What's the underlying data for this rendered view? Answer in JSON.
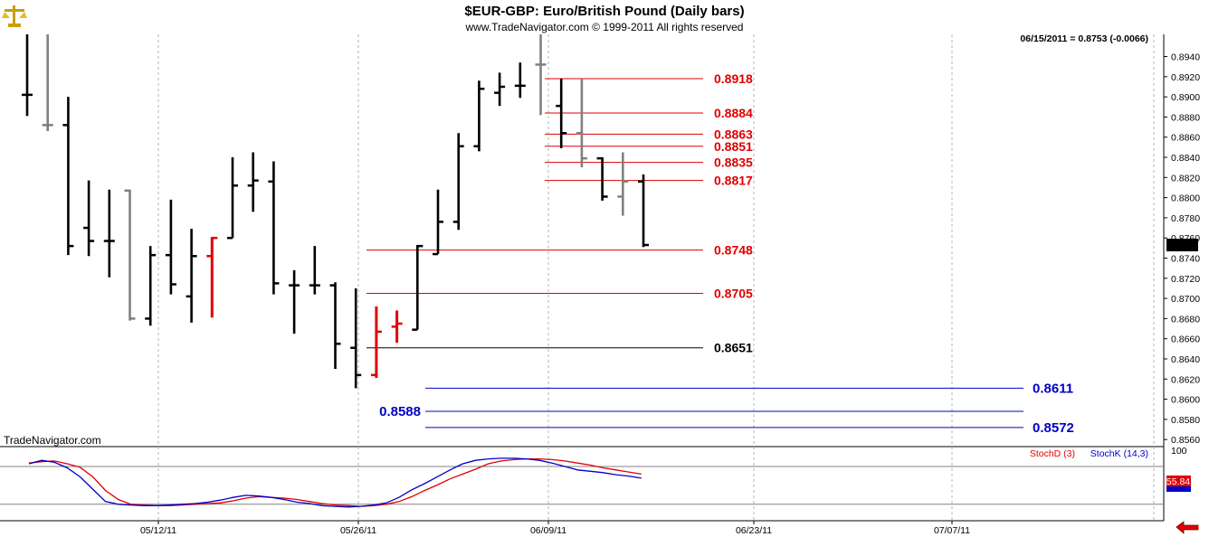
{
  "header": {
    "title": "$EUR-GBP:  Euro/British Pound  (Daily bars)",
    "copyright": "www.TradeNavigator.com © 1999-2011 All rights reserved",
    "last_info": "06/15/2011 = 0.8753 (-0.0066)",
    "brand": "TradeNavigator.com",
    "logo_icon": "scales-logo-icon"
  },
  "colors": {
    "bar_up": "#000000",
    "bar_gray": "#808080",
    "bar_red": "#e00000",
    "level_red": "#e00000",
    "level_black": "#000000",
    "level_blue": "#0000c8",
    "stoch_d": "#e00000",
    "stoch_k": "#0000c8",
    "grid": "#b4b4b4"
  },
  "chart_data": {
    "type": "ohlc",
    "price_ticks": [
      "0.8940",
      "0.8920",
      "0.8900",
      "0.8880",
      "0.8860",
      "0.8840",
      "0.8820",
      "0.8800",
      "0.8780",
      "0.8760",
      "0.8740",
      "0.8720",
      "0.8700",
      "0.8680",
      "0.8660",
      "0.8640",
      "0.8620",
      "0.8600",
      "0.8580",
      "0.8560"
    ],
    "ylim": [
      0.8553,
      0.8962
    ],
    "last_price_label": "0.8753",
    "x_ticks": [
      "05/12/11",
      "05/26/11",
      "06/09/11",
      "06/23/11",
      "07/07/11"
    ],
    "bars": [
      {
        "h": 0.8962,
        "l": 0.8881,
        "o": 0.8902,
        "c": 0.8902,
        "color": "black"
      },
      {
        "h": 0.8962,
        "l": 0.8866,
        "o": 0.8872,
        "c": 0.8872,
        "color": "gray"
      },
      {
        "h": 0.89,
        "l": 0.8743,
        "o": 0.8872,
        "c": 0.8752,
        "color": "black"
      },
      {
        "h": 0.8817,
        "l": 0.8742,
        "o": 0.877,
        "c": 0.8757,
        "color": "black"
      },
      {
        "h": 0.8808,
        "l": 0.8721,
        "o": 0.8757,
        "c": 0.8757,
        "color": "black"
      },
      {
        "h": 0.8808,
        "l": 0.8678,
        "o": 0.8807,
        "c": 0.868,
        "color": "gray"
      },
      {
        "h": 0.8752,
        "l": 0.8673,
        "o": 0.868,
        "c": 0.8743,
        "color": "black"
      },
      {
        "h": 0.8798,
        "l": 0.8704,
        "o": 0.8743,
        "c": 0.8714,
        "color": "black"
      },
      {
        "h": 0.8769,
        "l": 0.8676,
        "o": 0.8702,
        "c": 0.8742,
        "color": "black"
      },
      {
        "h": 0.8761,
        "l": 0.8681,
        "o": 0.8742,
        "c": 0.876,
        "color": "red"
      },
      {
        "h": 0.884,
        "l": 0.876,
        "o": 0.876,
        "c": 0.8812,
        "color": "black"
      },
      {
        "h": 0.8845,
        "l": 0.8786,
        "o": 0.8812,
        "c": 0.8817,
        "color": "black"
      },
      {
        "h": 0.8836,
        "l": 0.8704,
        "o": 0.8816,
        "c": 0.8715,
        "color": "black"
      },
      {
        "h": 0.8728,
        "l": 0.8665,
        "o": 0.8713,
        "c": 0.8713,
        "color": "black"
      },
      {
        "h": 0.8752,
        "l": 0.8704,
        "o": 0.8713,
        "c": 0.8713,
        "color": "black"
      },
      {
        "h": 0.8716,
        "l": 0.863,
        "o": 0.8713,
        "c": 0.8655,
        "color": "black"
      },
      {
        "h": 0.871,
        "l": 0.8611,
        "o": 0.8651,
        "c": 0.8624,
        "color": "black"
      },
      {
        "h": 0.8692,
        "l": 0.8621,
        "o": 0.8624,
        "c": 0.8667,
        "color": "red"
      },
      {
        "h": 0.8688,
        "l": 0.8656,
        "o": 0.8672,
        "c": 0.8675,
        "color": "red"
      },
      {
        "h": 0.8753,
        "l": 0.8669,
        "o": 0.8669,
        "c": 0.8752,
        "color": "black"
      },
      {
        "h": 0.8808,
        "l": 0.8744,
        "o": 0.8744,
        "c": 0.8776,
        "color": "black"
      },
      {
        "h": 0.8864,
        "l": 0.8768,
        "o": 0.8776,
        "c": 0.8851,
        "color": "black"
      },
      {
        "h": 0.8916,
        "l": 0.8846,
        "o": 0.8851,
        "c": 0.8908,
        "color": "black"
      },
      {
        "h": 0.8924,
        "l": 0.8891,
        "o": 0.8904,
        "c": 0.891,
        "color": "black"
      },
      {
        "h": 0.8934,
        "l": 0.8899,
        "o": 0.8911,
        "c": 0.8911,
        "color": "black"
      },
      {
        "h": 0.8962,
        "l": 0.8882,
        "o": 0.8932,
        "c": 0.8932,
        "color": "gray"
      },
      {
        "h": 0.8918,
        "l": 0.8849,
        "o": 0.8891,
        "c": 0.8864,
        "color": "black"
      },
      {
        "h": 0.8918,
        "l": 0.883,
        "o": 0.8864,
        "c": 0.8839,
        "color": "gray"
      },
      {
        "h": 0.884,
        "l": 0.8797,
        "o": 0.8839,
        "c": 0.8801,
        "color": "black"
      },
      {
        "h": 0.8845,
        "l": 0.8782,
        "o": 0.8801,
        "c": 0.8816,
        "color": "gray"
      },
      {
        "h": 0.8823,
        "l": 0.8751,
        "o": 0.8816,
        "c": 0.8753,
        "color": "black"
      }
    ],
    "levels": [
      {
        "value": 0.8918,
        "label": "0.8918",
        "color": "red"
      },
      {
        "value": 0.8884,
        "label": "0.8884",
        "color": "red"
      },
      {
        "value": 0.8863,
        "label": "0.8863",
        "color": "red"
      },
      {
        "value": 0.8851,
        "label": "0.8851",
        "color": "red"
      },
      {
        "value": 0.8835,
        "label": "0.8835",
        "color": "red"
      },
      {
        "value": 0.8817,
        "label": "0.8817",
        "color": "red"
      },
      {
        "value": 0.8748,
        "label": "0.8748",
        "color": "red"
      },
      {
        "value": 0.8705,
        "label": "0.8705",
        "color": "red"
      },
      {
        "value": 0.8651,
        "label": "0.8651",
        "color": "black"
      },
      {
        "value": 0.8611,
        "label": "0.8611",
        "color": "blue"
      },
      {
        "value": 0.8588,
        "label": "0.8588",
        "color": "blue"
      },
      {
        "value": 0.8572,
        "label": "0.8572",
        "color": "blue"
      }
    ],
    "stochastic": {
      "d_label": "StochD (3)",
      "k_label": "StochK (14,3)",
      "top_tick": "100",
      "last_value": "55.84",
      "upper_line": 75,
      "lower_line": 20,
      "series": [
        {
          "name": "StochD (3)",
          "color": "red",
          "values": [
            80,
            82,
            83,
            79,
            74,
            60,
            40,
            27,
            20,
            19,
            18,
            18,
            19,
            20,
            21,
            22,
            25,
            29,
            31,
            30,
            29,
            27,
            24,
            21,
            19,
            18,
            17,
            18,
            20,
            24,
            31,
            40,
            48,
            57,
            64,
            71,
            79,
            83,
            85,
            86,
            86,
            85,
            83,
            80,
            77,
            73,
            70,
            67,
            64
          ]
        },
        {
          "name": "StochK (14,3)",
          "color": "blue",
          "values": [
            79,
            84,
            81,
            73,
            60,
            42,
            24,
            20,
            19,
            18,
            18,
            19,
            20,
            21,
            23,
            26,
            30,
            33,
            32,
            30,
            27,
            23,
            21,
            18,
            17,
            16,
            17,
            19,
            22,
            30,
            41,
            50,
            60,
            70,
            79,
            84,
            86,
            87,
            87,
            86,
            84,
            80,
            75,
            70,
            68,
            66,
            63,
            61,
            58
          ]
        }
      ]
    }
  }
}
